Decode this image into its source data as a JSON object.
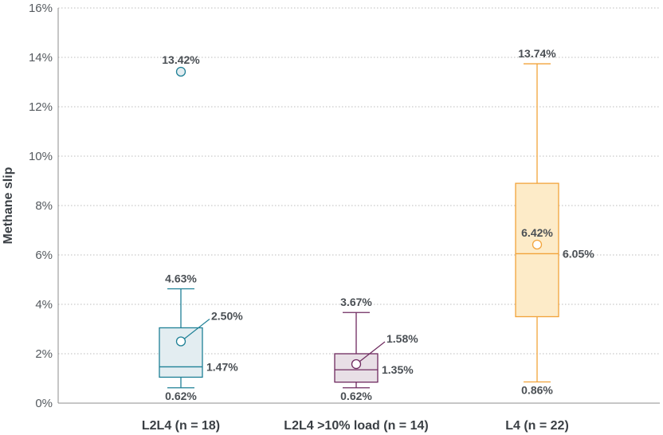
{
  "chart_data": {
    "type": "box",
    "ylabel": "Methane slip",
    "xlabel": "",
    "title": "",
    "ylim": [
      0,
      16
    ],
    "yticks": [
      0,
      2,
      4,
      6,
      8,
      10,
      12,
      14,
      16
    ],
    "ytick_labels": [
      "0%",
      "2%",
      "4%",
      "6%",
      "8%",
      "10%",
      "12%",
      "14%",
      "16%"
    ],
    "grid": "horizontal dotted",
    "categories": [
      {
        "label": "L2L4 (n = 18)",
        "min": 0.62,
        "q1": 1.05,
        "median": 1.47,
        "q3": 3.05,
        "max": 4.63,
        "mean": 2.5,
        "outlier": 13.42,
        "color": "#1e8096",
        "fill": "#e3edf1",
        "labels": {
          "min": "0.62%",
          "median": "1.47%",
          "max": "4.63%",
          "mean": "2.50%",
          "outlier": "13.42%"
        }
      },
      {
        "label": "L2L4 >10% load (n = 14)",
        "min": 0.62,
        "q1": 0.85,
        "median": 1.35,
        "q3": 2.0,
        "max": 3.67,
        "mean": 1.58,
        "outlier": null,
        "color": "#6e2a5f",
        "fill": "#e8dfe6",
        "labels": {
          "min": "0.62%",
          "median": "1.35%",
          "max": "3.67%",
          "mean": "1.58%"
        }
      },
      {
        "label": "L4 (n = 22)",
        "min": 0.86,
        "q1": 3.5,
        "median": 6.05,
        "q3": 8.9,
        "max": 13.74,
        "mean": 6.42,
        "outlier": null,
        "color": "#f2a33a",
        "fill": "#fdebc8",
        "labels": {
          "min": "0.86%",
          "median": "6.05%",
          "max": "13.74%",
          "mean": "6.42%"
        }
      }
    ]
  }
}
